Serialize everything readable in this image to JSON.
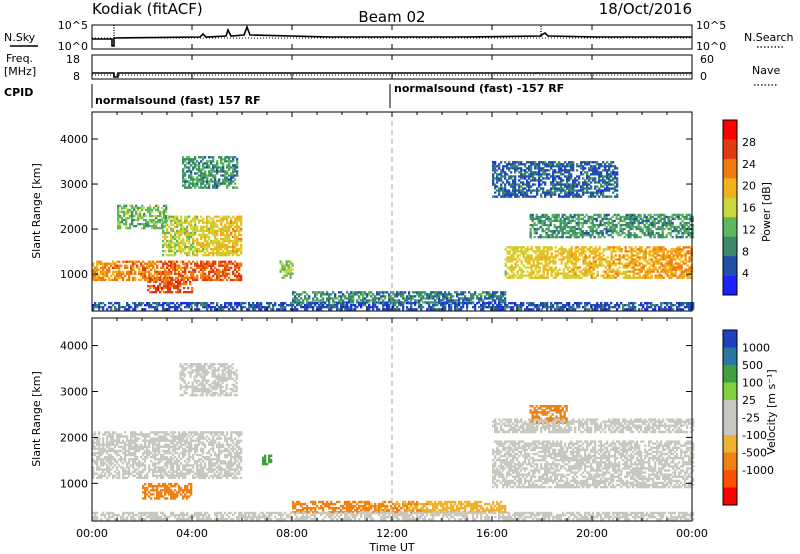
{
  "header": {
    "site": "Kodiak (fitACF)",
    "beam": "Beam 02",
    "date": "18/Oct/2016"
  },
  "params": {
    "nsky_label": "N.Sky",
    "nsky_ticks": [
      "10^5",
      "10^0"
    ],
    "nsearch_label": "N.Search",
    "nsearch_ticks": [
      "10^5",
      "10^0"
    ],
    "freq_label": "Freq.",
    "freq_unit": "[MHz]",
    "freq_ticks": [
      "18",
      "8"
    ],
    "nave_label": "Nave",
    "nave_ticks": [
      "60",
      "0"
    ],
    "cpid_label": "CPID",
    "cpid_segments": [
      "normalsound (fast) 157 RF",
      "normalsound (fast) -157 RF"
    ]
  },
  "axes": {
    "xlabel": "Time UT",
    "xticks": [
      "00:00",
      "04:00",
      "08:00",
      "12:00",
      "16:00",
      "20:00",
      "00:00"
    ],
    "ylabel": "Slant Range [km]",
    "yticks": [
      "1000",
      "2000",
      "3000",
      "4000"
    ]
  },
  "power_cbar": {
    "label": "Power [dB]",
    "ticks": [
      "4",
      "8",
      "12",
      "16",
      "20",
      "24",
      "28"
    ],
    "colors": [
      "#2020ff",
      "#2050a8",
      "#3d8a6a",
      "#5cb85c",
      "#cbd63a",
      "#f0b21a",
      "#f07a10",
      "#e23a10",
      "#ff0000"
    ]
  },
  "vel_cbar": {
    "label": "Velocity [m s⁻¹]",
    "ticks": [
      "1000",
      "500",
      "100",
      "25",
      "-25",
      "-100",
      "-500",
      "-1000"
    ],
    "colors": [
      "#2040c0",
      "#2878a0",
      "#3fa040",
      "#80d040",
      "#c8c8c0",
      "#c8c8c0",
      "#f0b030",
      "#f08010",
      "#ff5000",
      "#ff0000"
    ]
  },
  "chart_data": [
    {
      "type": "heatmap",
      "title": "Power",
      "xlabel": "Time UT",
      "ylabel": "Slant Range [km]",
      "x_range_hours": [
        0,
        24
      ],
      "ylim_km": [
        180,
        4600
      ],
      "clim": [
        0,
        30
      ],
      "bands": [
        {
          "t0": 0.0,
          "t1": 6.0,
          "r0": 850,
          "r1": 1300,
          "v0": 20,
          "v1": 24
        },
        {
          "t0": 2.2,
          "t1": 4.0,
          "r0": 580,
          "r1": 900,
          "v0": 24,
          "v1": 24
        },
        {
          "t0": 2.8,
          "t1": 6.0,
          "r0": 1400,
          "r1": 2300,
          "v0": 14,
          "v1": 18
        },
        {
          "t0": 1.0,
          "t1": 3.0,
          "r0": 2000,
          "r1": 2500,
          "v0": 12,
          "v1": 12
        },
        {
          "t0": 3.6,
          "t1": 5.8,
          "r0": 2900,
          "r1": 3600,
          "v0": 9,
          "v1": 9
        },
        {
          "t0": 7.5,
          "t1": 8.0,
          "r0": 900,
          "r1": 1300,
          "v0": 13,
          "v1": 13
        },
        {
          "t0": 8.0,
          "t1": 16.5,
          "r0": 350,
          "r1": 600,
          "v0": 9,
          "v1": 7
        },
        {
          "t0": 16.5,
          "t1": 24.0,
          "r0": 900,
          "r1": 1600,
          "v0": 16,
          "v1": 20
        },
        {
          "t0": 17.5,
          "t1": 24.0,
          "r0": 1800,
          "r1": 2300,
          "v0": 9,
          "v1": 9
        },
        {
          "t0": 16.0,
          "t1": 21.0,
          "r0": 2700,
          "r1": 3500,
          "v0": 6,
          "v1": 6
        },
        {
          "t0": 0.0,
          "t1": 24.0,
          "r0": 200,
          "r1": 380,
          "v0": 5,
          "v1": 5
        }
      ]
    },
    {
      "type": "heatmap",
      "title": "Velocity",
      "xlabel": "Time UT",
      "ylabel": "Slant Range [km]",
      "x_range_hours": [
        0,
        24
      ],
      "ylim_km": [
        180,
        4600
      ],
      "bands": [
        {
          "t0": 0.0,
          "t1": 6.0,
          "r0": 1100,
          "r1": 2100,
          "v0": 0,
          "v1": 0
        },
        {
          "t0": 2.0,
          "t1": 4.0,
          "r0": 650,
          "r1": 1000,
          "v0": -150,
          "v1": -150
        },
        {
          "t0": 3.5,
          "t1": 5.8,
          "r0": 2900,
          "r1": 3600,
          "v0": 0,
          "v1": 0
        },
        {
          "t0": 6.8,
          "t1": 7.2,
          "r0": 1400,
          "r1": 1600,
          "v0": 200,
          "v1": 200
        },
        {
          "t0": 8.0,
          "t1": 16.5,
          "r0": 350,
          "r1": 600,
          "v0": -150,
          "v1": -50
        },
        {
          "t0": 16.0,
          "t1": 24.0,
          "r0": 900,
          "r1": 1900,
          "v0": 0,
          "v1": 0
        },
        {
          "t0": 17.5,
          "t1": 19.0,
          "r0": 2300,
          "r1": 2700,
          "v0": -200,
          "v1": -200
        },
        {
          "t0": 16.0,
          "t1": 24.0,
          "r0": 2100,
          "r1": 2400,
          "v0": 0,
          "v1": 0
        },
        {
          "t0": 0.0,
          "t1": 24.0,
          "r0": 200,
          "r1": 350,
          "v0": 0,
          "v1": 0
        }
      ]
    }
  ]
}
